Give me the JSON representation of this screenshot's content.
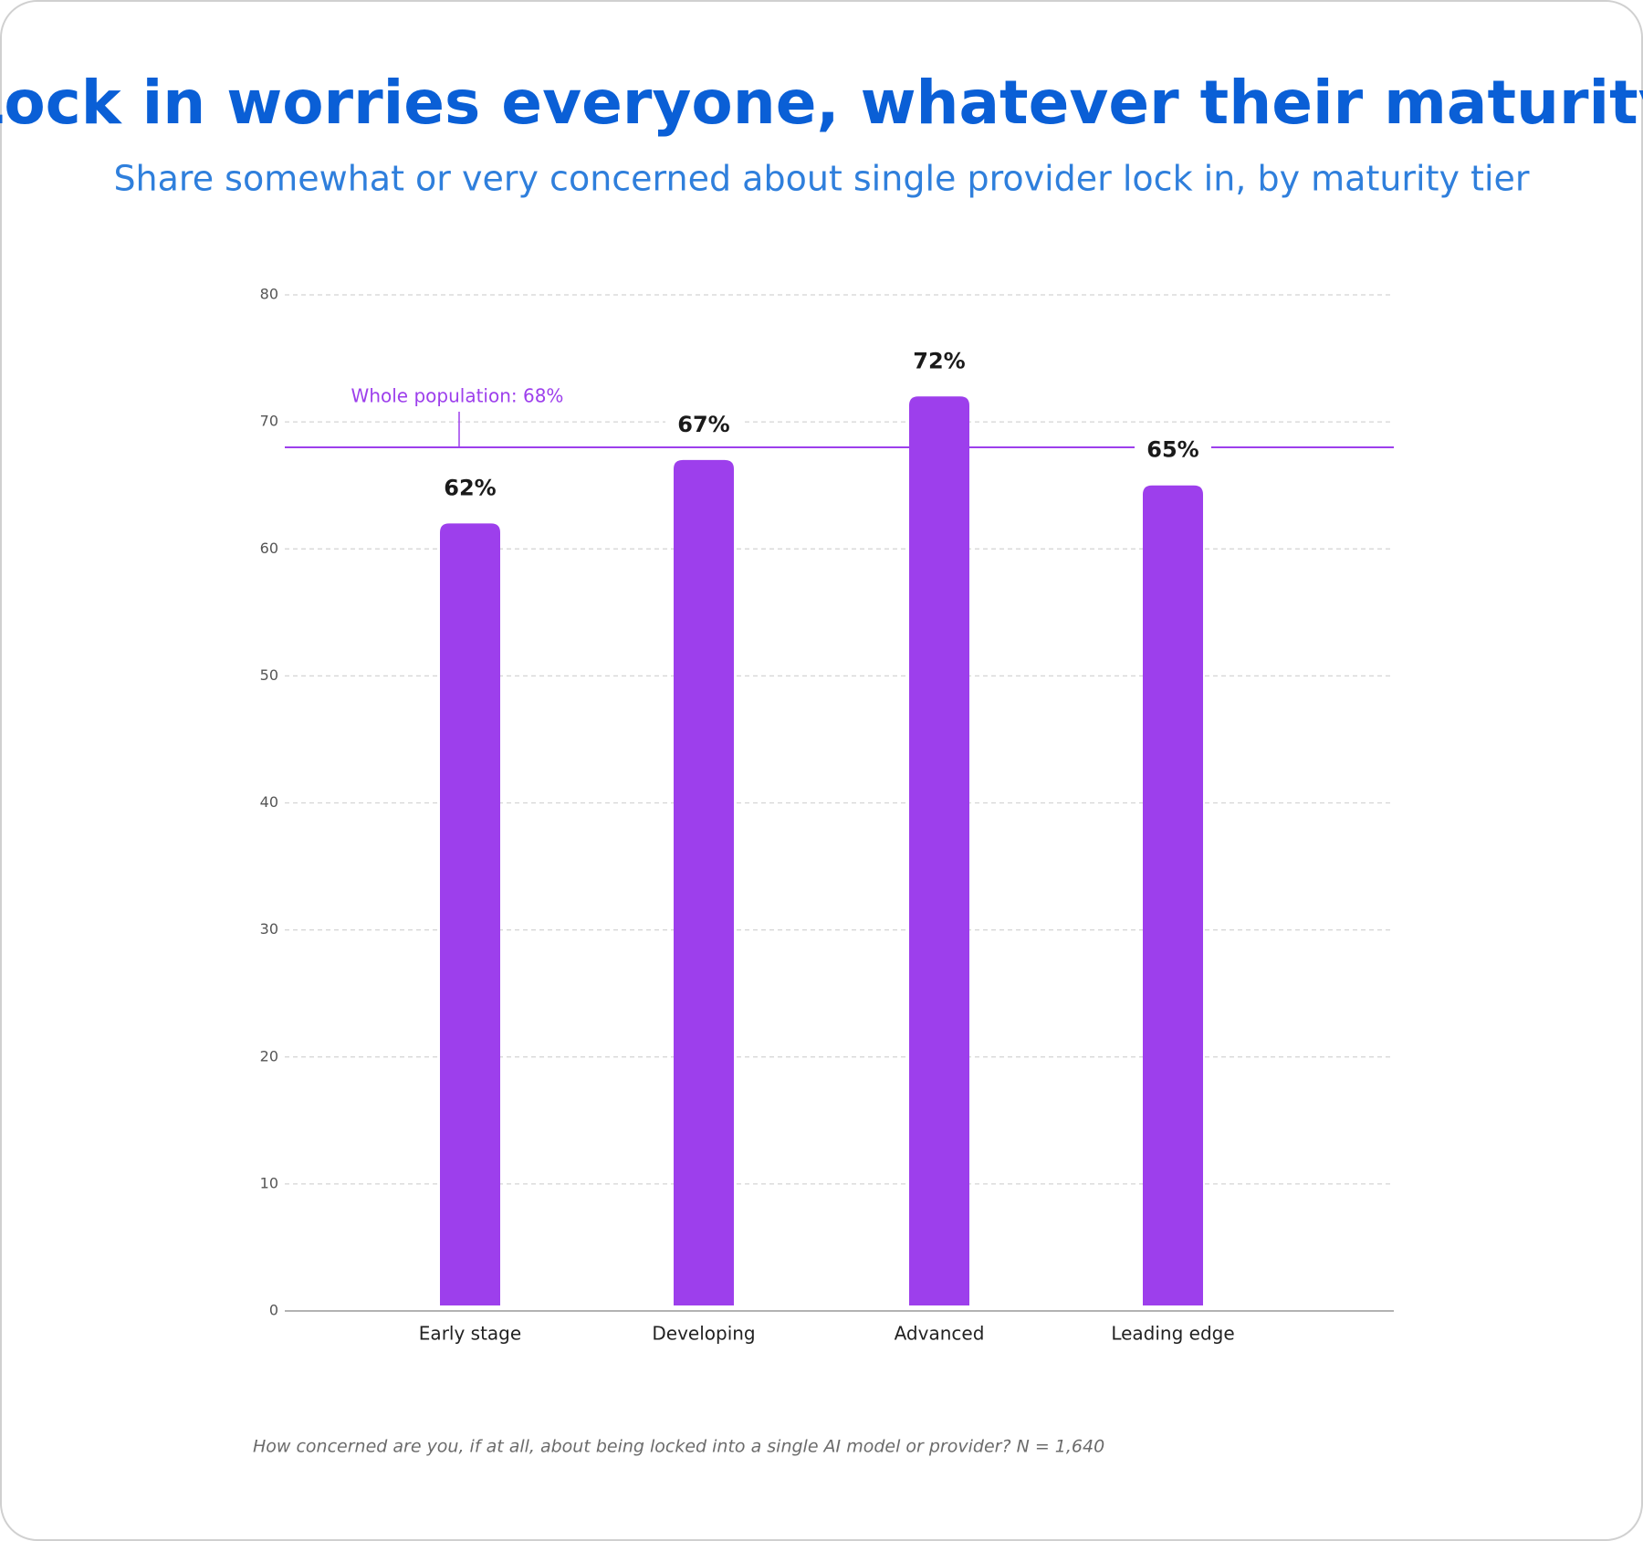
{
  "chart_data": {
    "type": "bar",
    "title": "Lock in worries everyone, whatever their maturity",
    "subtitle": "Share somewhat or very concerned about single provider lock in, by maturity tier",
    "categories": [
      "Early stage",
      "Developing",
      "Advanced",
      "Leading edge"
    ],
    "values": [
      62,
      67,
      72,
      65
    ],
    "value_labels": [
      "62%",
      "67%",
      "72%",
      "65%"
    ],
    "color": "#9d3fec",
    "ylim": [
      0,
      80
    ],
    "yticks": [
      0,
      10,
      20,
      30,
      40,
      50,
      60,
      70,
      80
    ],
    "grid": true,
    "reference_line": {
      "value": 68,
      "label": "Whole population: 68%",
      "color": "#9d3fec"
    },
    "footnote": "How concerned are you, if at all, about being locked into a single AI model or provider? N = 1,640"
  }
}
